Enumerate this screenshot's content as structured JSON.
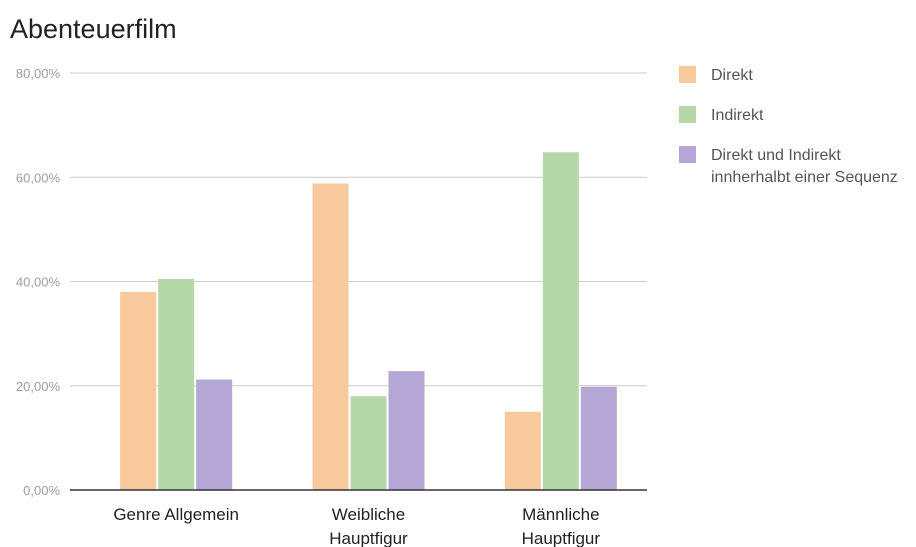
{
  "chart_data": {
    "type": "bar",
    "title": "Abenteuerfilm",
    "categories": [
      [
        "Genre Allgemein"
      ],
      [
        "Weibliche",
        "Hauptfigur"
      ],
      [
        "Männliche",
        "Hauptfigur"
      ]
    ],
    "series": [
      {
        "name": "Direkt",
        "color": "#f8c99c",
        "values": [
          38.0,
          58.8,
          15.0
        ]
      },
      {
        "name": "Indirekt",
        "color": "#b6d8a8",
        "values": [
          40.5,
          18.0,
          64.8
        ]
      },
      {
        "name": "Direkt und Indirekt innherhalbt einer Sequenz",
        "legend_lines": [
          "Direkt und Indirekt",
          "innherhalbt einer Sequenz"
        ],
        "color": "#b4a7d6",
        "values": [
          21.2,
          22.8,
          19.8
        ]
      }
    ],
    "ylim": [
      0,
      80
    ],
    "yticks": [
      0,
      20,
      40,
      60,
      80
    ],
    "ytick_labels": [
      "0,00%",
      "20,00%",
      "40,00%",
      "60,00%",
      "80,00%"
    ],
    "xlabel": "",
    "ylabel": "",
    "grid": true,
    "legend_position": "right"
  }
}
